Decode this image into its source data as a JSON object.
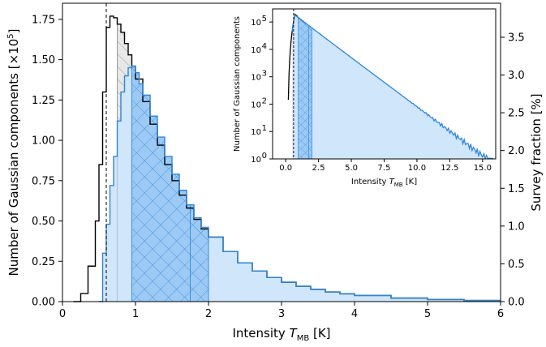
{
  "chart_data": [
    {
      "type": "histogram",
      "role": "main",
      "xlabel": {
        "main": "Intensity ",
        "var": "T",
        "sub": "MB",
        "unit": " [K]"
      },
      "ylabel": "Number of Gaussian components [×10",
      "ylabel_exp": "5",
      "ylabel_end": "]",
      "ylabel_right": "Survey fraction [%]",
      "xlim": [
        0,
        6
      ],
      "ylim": [
        0,
        1.85
      ],
      "xticks": [
        "0",
        "1",
        "2",
        "3",
        "4",
        "5",
        "6"
      ],
      "yticks": [
        "0.00",
        "0.25",
        "0.50",
        "0.75",
        "1.00",
        "1.25",
        "1.50",
        "1.75"
      ],
      "right_ylim": [
        0,
        3.95
      ],
      "right_yticks": [
        "0.0",
        "0.5",
        "1.0",
        "1.5",
        "2.0",
        "2.5",
        "3.0",
        "3.5"
      ],
      "threshold_line_x": 0.6,
      "all_components": {
        "color": "#000000",
        "x": [
          0.15,
          0.25,
          0.35,
          0.45,
          0.5,
          0.55,
          0.6,
          0.65,
          0.7,
          0.75,
          0.8,
          0.85,
          0.9,
          0.95,
          1.0,
          1.1,
          1.2,
          1.3,
          1.4,
          1.5,
          1.6,
          1.7,
          1.8,
          1.9,
          2.0,
          2.2,
          2.4,
          2.6,
          2.8,
          3.0,
          3.2,
          3.4,
          3.6,
          3.8,
          4.0,
          4.5,
          5.0,
          5.5,
          6.0
        ],
        "y": [
          0.0,
          0.05,
          0.22,
          0.5,
          0.85,
          1.3,
          1.7,
          1.77,
          1.76,
          1.72,
          1.67,
          1.6,
          1.53,
          1.46,
          1.38,
          1.24,
          1.1,
          0.97,
          0.85,
          0.75,
          0.66,
          0.58,
          0.51,
          0.45,
          0.4,
          0.31,
          0.24,
          0.19,
          0.15,
          0.12,
          0.095,
          0.076,
          0.06,
          0.048,
          0.038,
          0.022,
          0.013,
          0.007,
          0.004
        ]
      },
      "gray_region": {
        "x_range": [
          0.75,
          1.0
        ],
        "color": "#e8e8e8",
        "hatch": "diagonal"
      },
      "selected_components": {
        "color": "#2f86d8",
        "fill": "#cfe6fb",
        "x": [
          0.5,
          0.55,
          0.6,
          0.65,
          0.7,
          0.75,
          0.8,
          0.85,
          0.9,
          0.95,
          1.0,
          1.05,
          1.1,
          1.2,
          1.3,
          1.4,
          1.5,
          1.6,
          1.7,
          1.8,
          1.9,
          2.0,
          2.2,
          2.4,
          2.6,
          2.8,
          3.0,
          3.2,
          3.4,
          3.6,
          3.8,
          4.0,
          4.5,
          5.0,
          5.5,
          6.0
        ],
        "y": [
          0.0,
          0.3,
          0.48,
          0.72,
          0.9,
          1.12,
          1.3,
          1.4,
          1.45,
          1.46,
          1.42,
          1.35,
          1.28,
          1.15,
          1.02,
          0.9,
          0.79,
          0.69,
          0.6,
          0.52,
          0.46,
          0.4,
          0.31,
          0.24,
          0.19,
          0.15,
          0.12,
          0.095,
          0.076,
          0.06,
          0.048,
          0.038,
          0.022,
          0.013,
          0.007,
          0.004
        ]
      },
      "crosshatch_region": {
        "x_range": [
          0.95,
          2.0
        ],
        "color": "#9ccaf5"
      }
    },
    {
      "type": "histogram",
      "role": "inset",
      "xlabel": {
        "main": "Intensity ",
        "var": "T",
        "sub": "MB",
        "unit": " [K]"
      },
      "ylabel": "Number of Gaussian components",
      "yscale": "log",
      "xlim": [
        -1,
        16
      ],
      "ylim": [
        1,
        300000
      ],
      "xticks": [
        "0.0",
        "2.5",
        "5.0",
        "7.5",
        "10.0",
        "12.5",
        "15.0"
      ],
      "ytick_exponents": [
        "0",
        "1",
        "2",
        "3",
        "4",
        "5"
      ],
      "threshold_line_x": 0.6,
      "crosshatch_region_x": [
        0.95,
        2.0
      ]
    }
  ]
}
